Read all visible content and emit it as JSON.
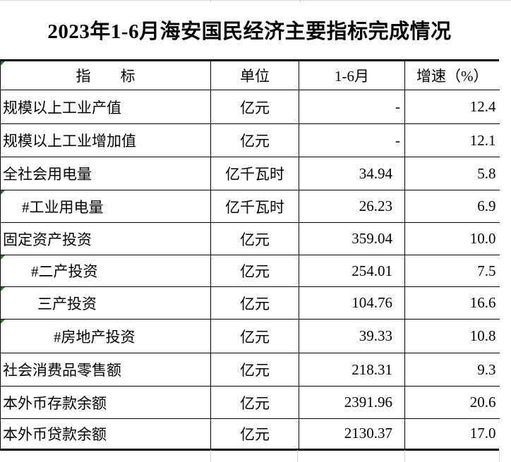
{
  "title": "2023年1-6月海安国民经济主要指标完成情况",
  "table": {
    "columns": [
      "指　　标",
      "单位",
      "1-6月",
      "增速（%）"
    ],
    "rows": [
      {
        "indicator": "规模以上工业产值",
        "unit": "亿元",
        "value": "-",
        "growth": "12.4",
        "indent": 3,
        "flag": false
      },
      {
        "indicator": "规模以上工业增加值",
        "unit": "亿元",
        "value": "-",
        "growth": "12.1",
        "indent": 3,
        "flag": false
      },
      {
        "indicator": "全社会用电量",
        "unit": "亿千瓦时",
        "value": "34.94",
        "growth": "5.8",
        "indent": 3,
        "flag": false
      },
      {
        "indicator": "#工业用电量",
        "unit": "亿千瓦时",
        "value": "26.23",
        "growth": "6.9",
        "indent": 30,
        "flag": true
      },
      {
        "indicator": "固定资产投资",
        "unit": "亿元",
        "value": "359.04",
        "growth": "10.0",
        "indent": 3,
        "flag": false
      },
      {
        "indicator": "#二产投资",
        "unit": "亿元",
        "value": "254.01",
        "growth": "7.5",
        "indent": 43,
        "flag": true
      },
      {
        "indicator": "三产投资",
        "unit": "亿元",
        "value": "104.76",
        "growth": "16.6",
        "indent": 52,
        "flag": true
      },
      {
        "indicator": "#房地产投资",
        "unit": "亿元",
        "value": "39.33",
        "growth": "10.8",
        "indent": 75,
        "flag": true
      },
      {
        "indicator": "社会消费品零售额",
        "unit": "亿元",
        "value": "218.31",
        "growth": "9.3",
        "indent": 3,
        "flag": false
      },
      {
        "indicator": "本外币存款余额",
        "unit": "亿元",
        "value": "2391.96",
        "growth": "20.6",
        "indent": 3,
        "flag": false
      },
      {
        "indicator": "本外币贷款余额",
        "unit": "亿元",
        "value": "2130.37",
        "growth": "17.0",
        "indent": 3,
        "flag": false
      }
    ],
    "header_flag": true
  },
  "colors": {
    "border": "#000000",
    "faint_gridline": "#d6d6d6",
    "error_indicator_green": "#1f7d1f",
    "background": "#ffffff",
    "text": "#000000"
  }
}
